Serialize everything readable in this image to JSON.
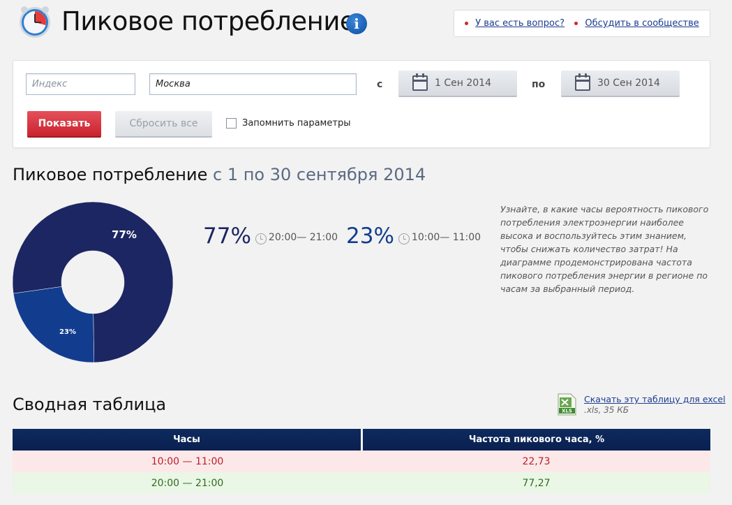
{
  "header": {
    "title": "Пиковое потребление",
    "links": [
      "У вас есть вопрос?",
      "Обсудить в сообществе"
    ]
  },
  "filter": {
    "index_placeholder": "Индекс",
    "city_value": "Москва",
    "from_label": "с",
    "from_date": "1 Сен 2014",
    "to_label": "по",
    "to_date": "30 Сен 2014",
    "show_label": "Показать",
    "reset_label": "Сбросить все",
    "remember_label": "Запомнить параметры"
  },
  "section": {
    "title": "Пиковое потребление",
    "range": "с 1 по 30 сентября 2014"
  },
  "chart_data": {
    "type": "pie",
    "categories": [
      "20:00— 21:00",
      "10:00— 11:00"
    ],
    "values": [
      77,
      23
    ],
    "labels": [
      "77%",
      "23%"
    ],
    "colors": [
      "#1c2663",
      "#123d8f"
    ]
  },
  "stats": [
    {
      "pct": "77%",
      "time": "20:00— 21:00"
    },
    {
      "pct": "23%",
      "time": "10:00— 11:00"
    }
  ],
  "description": "Узнайте, в какие часы вероятность пикового потребления электроэнергии наиболее высока и воспользуйтесь этим знанием, чтобы снижать количество затрат! На диаграмме продемонстрирована частота пикового потребления энергии в регионе по часам за выбранный период.",
  "table": {
    "title": "Сводная таблица",
    "download_label": "Скачать эту таблицу для excel",
    "file_info": ".xls, 35 КБ",
    "xls_badge": "XLS",
    "headers": [
      "Часы",
      "Частота пикового часа, %"
    ],
    "rows": [
      {
        "hours": "10:00 — 11:00",
        "freq": "22,73"
      },
      {
        "hours": "20:00 — 21:00",
        "freq": "77,27"
      }
    ]
  }
}
